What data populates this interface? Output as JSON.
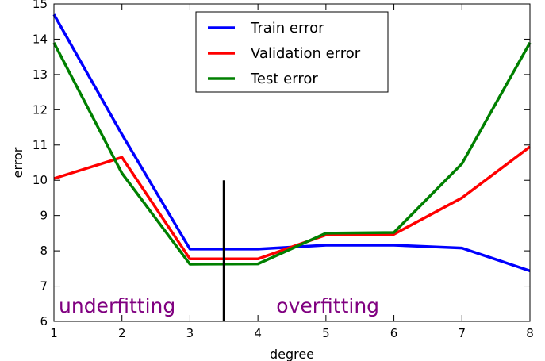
{
  "chart_data": {
    "type": "line",
    "xlabel": "degree",
    "ylabel": "error",
    "xlim": [
      1,
      8
    ],
    "ylim": [
      6,
      15
    ],
    "x_ticks": [
      "1",
      "2",
      "3",
      "4",
      "5",
      "6",
      "7",
      "8"
    ],
    "y_ticks": [
      "6",
      "7",
      "8",
      "9",
      "10",
      "11",
      "12",
      "13",
      "14",
      "15"
    ],
    "x": [
      1,
      2,
      3,
      4,
      5,
      6,
      7,
      8
    ],
    "series": [
      {
        "name": "Train error",
        "color": "#0000ff",
        "values": [
          14.7,
          11.3,
          8.05,
          8.05,
          8.16,
          8.16,
          8.08,
          7.43
        ]
      },
      {
        "name": "Validation error",
        "color": "#ff0000",
        "values": [
          10.05,
          10.65,
          7.77,
          7.77,
          8.45,
          8.47,
          9.5,
          10.95
        ]
      },
      {
        "name": "Test error",
        "color": "#008000",
        "values": [
          13.9,
          10.2,
          7.62,
          7.63,
          8.5,
          8.52,
          10.47,
          13.9
        ]
      }
    ],
    "vertical_line": {
      "x": 3.5,
      "y_from": 6,
      "y_to": 10,
      "color": "#000000"
    },
    "annotations": [
      {
        "text": "underfitting",
        "x": 1.07,
        "y": 6.25,
        "color": "#800080"
      },
      {
        "text": "overfitting",
        "x": 4.27,
        "y": 6.25,
        "color": "#800080"
      }
    ],
    "legend": {
      "position": "top-center"
    },
    "grid": false
  }
}
